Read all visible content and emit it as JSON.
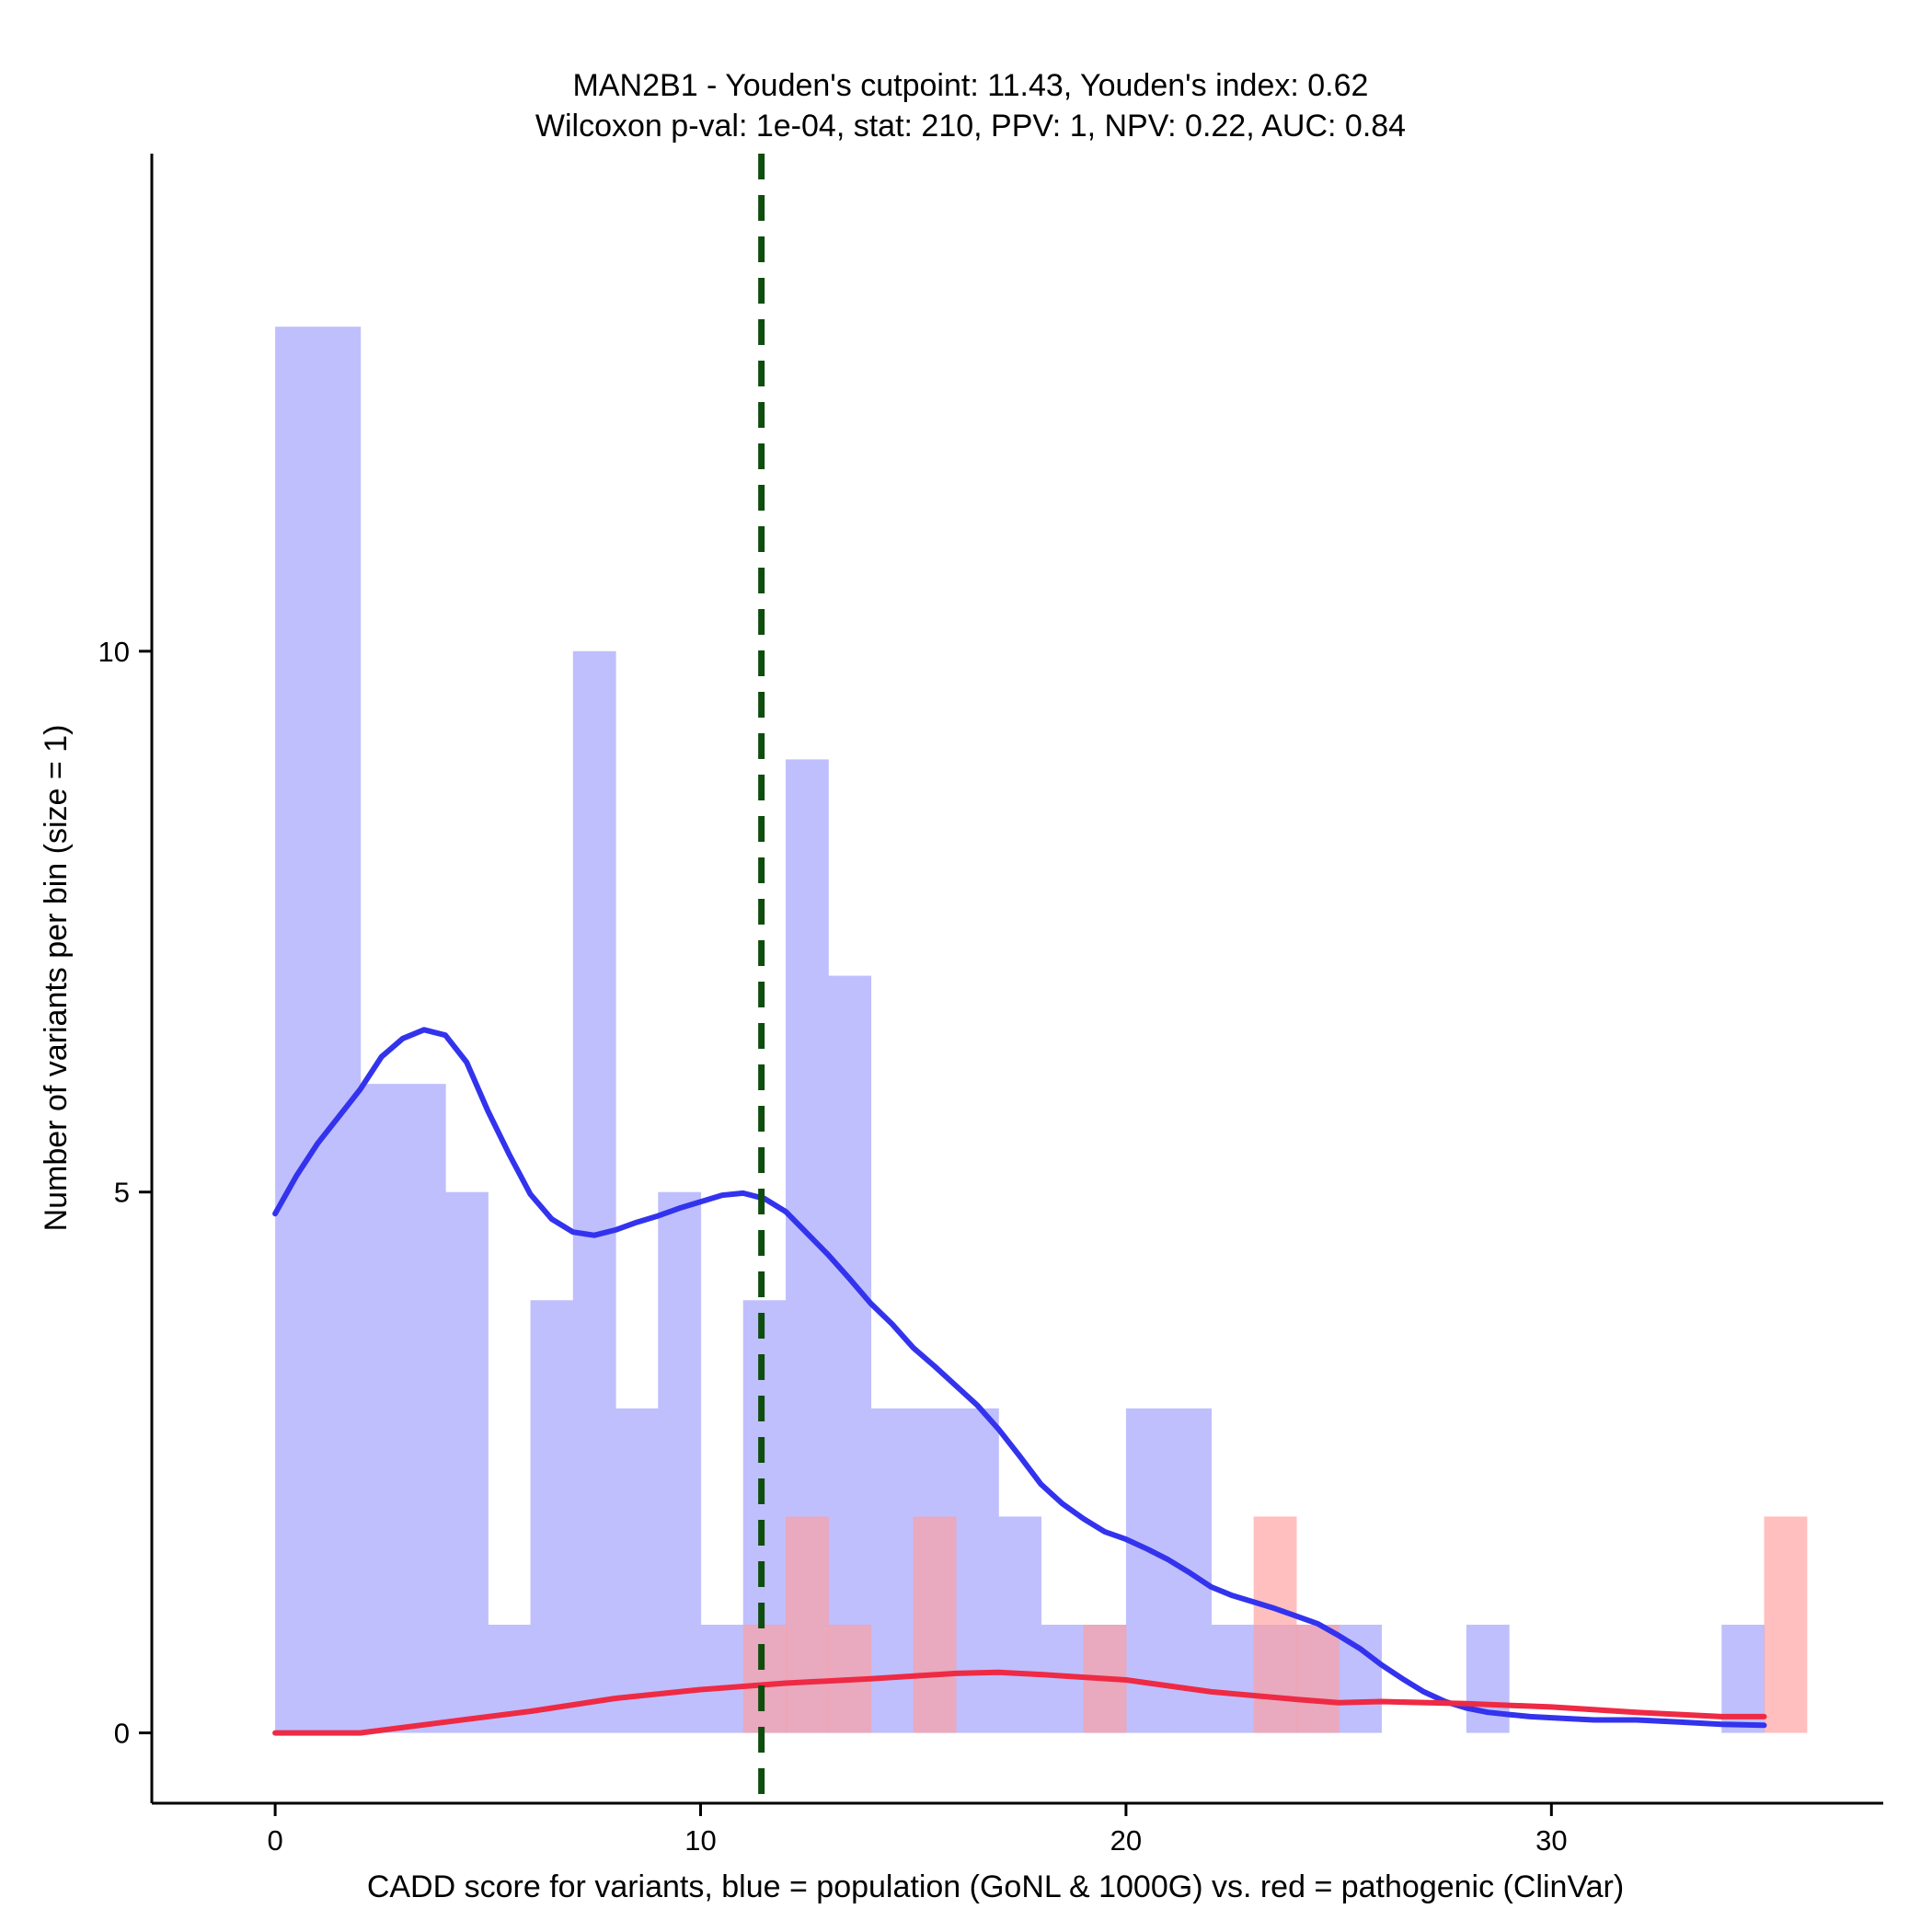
{
  "chart_data": {
    "type": "bar",
    "title_line1": "MAN2B1 - Youden's cutpoint: 11.43, Youden's index: 0.62",
    "title_line2": "Wilcoxon p-val: 1e-04, stat: 210, PPV: 1, NPV: 0.22, AUC: 0.84",
    "xlabel": "CADD score for variants, blue = population (GoNL & 1000G) vs. red = pathogenic (ClinVar)",
    "ylabel": "Number of variants per bin (size = 1)",
    "xlim": [
      -2.9,
      37.8
    ],
    "ylim": [
      -0.65,
      14.6
    ],
    "xticks": [
      0,
      10,
      20,
      30
    ],
    "yticks": [
      0,
      5,
      10
    ],
    "cutpoint": 11.43,
    "colors": {
      "population_fill": "#BFBFFD",
      "pathogenic_fill": "#FF9C9C",
      "population_line": "#3333EE",
      "pathogenic_line": "#EE2A44",
      "cutpoint_line": "#0E4D0E"
    },
    "series": [
      {
        "name": "population (GoNL & 1000G)",
        "bin_size": 1,
        "bins": [
          [
            0,
            1,
            13
          ],
          [
            1,
            2,
            13
          ],
          [
            2,
            3,
            6
          ],
          [
            3,
            4,
            6
          ],
          [
            4,
            5,
            5
          ],
          [
            5,
            6,
            1
          ],
          [
            6,
            7,
            4
          ],
          [
            7,
            8,
            10
          ],
          [
            8,
            9,
            3
          ],
          [
            9,
            10,
            5
          ],
          [
            10,
            11,
            1
          ],
          [
            11,
            12,
            4
          ],
          [
            12,
            13,
            9
          ],
          [
            13,
            14,
            7
          ],
          [
            14,
            15,
            3
          ],
          [
            15,
            16,
            3
          ],
          [
            16,
            17,
            3
          ],
          [
            17,
            18,
            2
          ],
          [
            18,
            19,
            1
          ],
          [
            19,
            20,
            1
          ],
          [
            20,
            21,
            3
          ],
          [
            21,
            22,
            3
          ],
          [
            22,
            23,
            1
          ],
          [
            23,
            24,
            1
          ],
          [
            24,
            25,
            1
          ],
          [
            25,
            26,
            1
          ],
          [
            28,
            29,
            1
          ],
          [
            34,
            35,
            1
          ]
        ],
        "density_curve": [
          [
            0,
            4.8
          ],
          [
            0.5,
            5.15
          ],
          [
            1,
            5.45
          ],
          [
            1.5,
            5.7
          ],
          [
            2,
            5.95
          ],
          [
            2.5,
            6.25
          ],
          [
            3,
            6.42
          ],
          [
            3.5,
            6.5
          ],
          [
            4,
            6.45
          ],
          [
            4.5,
            6.2
          ],
          [
            5,
            5.75
          ],
          [
            5.5,
            5.35
          ],
          [
            6,
            4.98
          ],
          [
            6.5,
            4.75
          ],
          [
            7,
            4.63
          ],
          [
            7.5,
            4.6
          ],
          [
            8,
            4.65
          ],
          [
            8.5,
            4.72
          ],
          [
            9,
            4.78
          ],
          [
            9.5,
            4.85
          ],
          [
            10,
            4.91
          ],
          [
            10.5,
            4.97
          ],
          [
            11,
            4.99
          ],
          [
            11.5,
            4.94
          ],
          [
            12,
            4.82
          ],
          [
            12.5,
            4.62
          ],
          [
            13,
            4.42
          ],
          [
            13.5,
            4.2
          ],
          [
            14,
            3.97
          ],
          [
            14.5,
            3.78
          ],
          [
            15,
            3.56
          ],
          [
            15.5,
            3.39
          ],
          [
            16,
            3.21
          ],
          [
            16.5,
            3.03
          ],
          [
            17,
            2.81
          ],
          [
            17.5,
            2.56
          ],
          [
            18,
            2.3
          ],
          [
            18.5,
            2.12
          ],
          [
            19,
            1.98
          ],
          [
            19.5,
            1.86
          ],
          [
            20,
            1.79
          ],
          [
            20.5,
            1.7
          ],
          [
            21,
            1.6
          ],
          [
            21.5,
            1.48
          ],
          [
            22,
            1.35
          ],
          [
            22.5,
            1.27
          ],
          [
            23,
            1.21
          ],
          [
            23.5,
            1.15
          ],
          [
            24,
            1.08
          ],
          [
            24.5,
            1.01
          ],
          [
            25,
            0.9
          ],
          [
            25.5,
            0.78
          ],
          [
            26,
            0.63
          ],
          [
            26.5,
            0.5
          ],
          [
            27,
            0.38
          ],
          [
            27.5,
            0.29
          ],
          [
            28,
            0.23
          ],
          [
            28.5,
            0.19
          ],
          [
            29,
            0.17
          ],
          [
            29.5,
            0.15
          ],
          [
            30,
            0.14
          ],
          [
            31,
            0.12
          ],
          [
            32,
            0.12
          ],
          [
            33,
            0.1
          ],
          [
            34,
            0.08
          ],
          [
            35,
            0.07
          ]
        ]
      },
      {
        "name": "pathogenic (ClinVar)",
        "bin_size": 1,
        "bins": [
          [
            11,
            12,
            1
          ],
          [
            12,
            13,
            2
          ],
          [
            13,
            14,
            1
          ],
          [
            15,
            16,
            2
          ],
          [
            19,
            20,
            1
          ],
          [
            23,
            24,
            2
          ],
          [
            24,
            25,
            1
          ],
          [
            35,
            36,
            2
          ]
        ],
        "density_curve": [
          [
            0,
            0
          ],
          [
            2,
            0
          ],
          [
            4,
            0.1
          ],
          [
            6,
            0.2
          ],
          [
            8,
            0.32
          ],
          [
            10,
            0.4
          ],
          [
            12,
            0.46
          ],
          [
            14,
            0.5
          ],
          [
            16,
            0.55
          ],
          [
            17,
            0.56
          ],
          [
            18,
            0.54
          ],
          [
            20,
            0.49
          ],
          [
            22,
            0.38
          ],
          [
            24,
            0.31
          ],
          [
            25,
            0.28
          ],
          [
            26,
            0.29
          ],
          [
            28,
            0.27
          ],
          [
            30,
            0.24
          ],
          [
            32,
            0.19
          ],
          [
            34,
            0.15
          ],
          [
            35,
            0.15
          ]
        ]
      }
    ]
  }
}
